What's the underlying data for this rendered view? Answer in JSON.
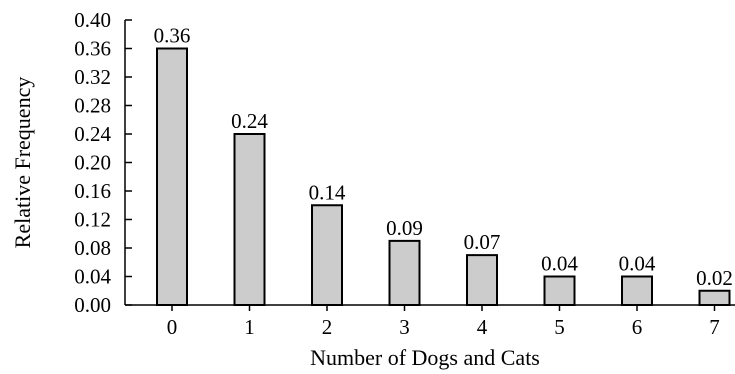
{
  "chart_data": {
    "type": "bar",
    "title": "",
    "xlabel": "Number of Dogs and Cats",
    "ylabel": "Relative Frequency",
    "categories": [
      "0",
      "1",
      "2",
      "3",
      "4",
      "5",
      "6",
      "7"
    ],
    "values": [
      0.36,
      0.24,
      0.14,
      0.09,
      0.07,
      0.04,
      0.04,
      0.02
    ],
    "data_labels": [
      "0.36",
      "0.24",
      "0.14",
      "0.09",
      "0.07",
      "0.04",
      "0.04",
      "0.02"
    ],
    "ylim": [
      0,
      0.4
    ],
    "yticks": [
      0.0,
      0.04,
      0.08,
      0.12,
      0.16,
      0.2,
      0.24,
      0.28,
      0.32,
      0.36,
      0.4
    ],
    "ytick_labels": [
      "0.00",
      "0.04",
      "0.08",
      "0.12",
      "0.16",
      "0.20",
      "0.24",
      "0.28",
      "0.32",
      "0.36",
      "0.40"
    ],
    "grid": false,
    "bar_color": "#cccccc",
    "bar_edge_color": "#000000"
  }
}
